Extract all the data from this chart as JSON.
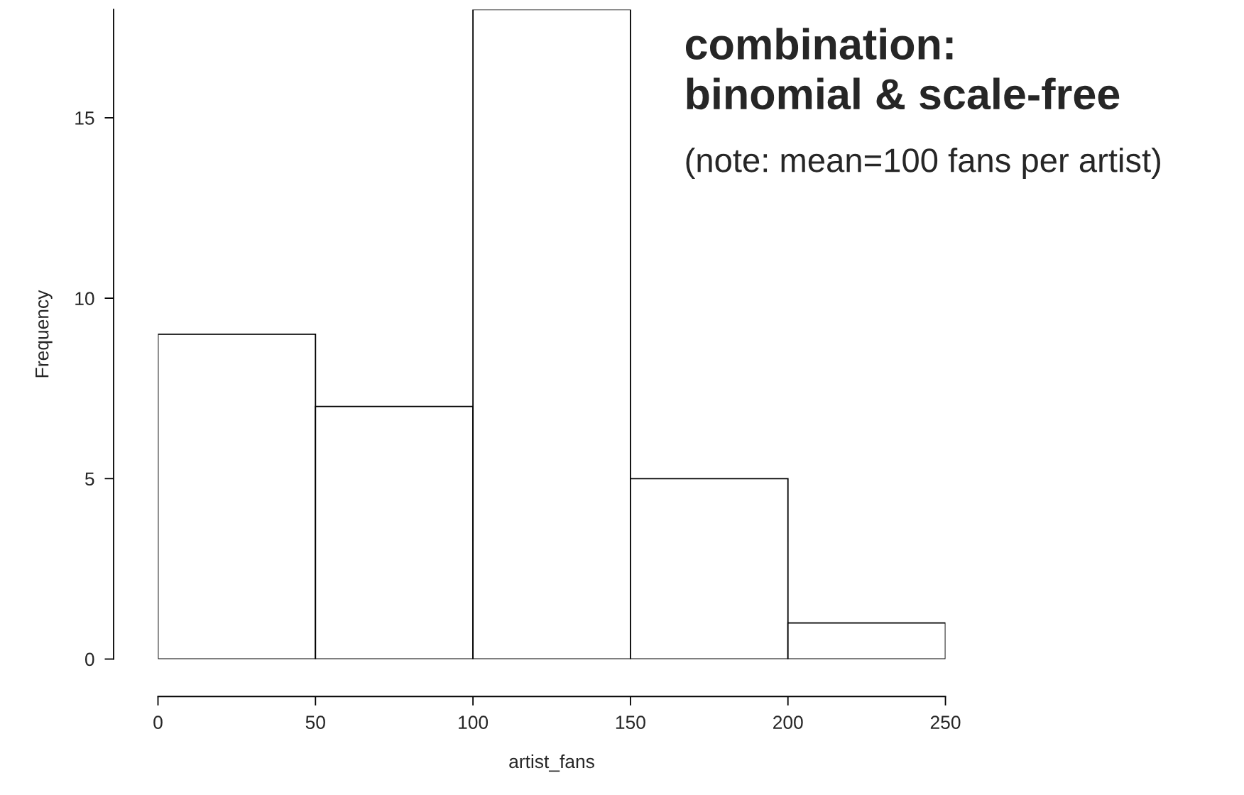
{
  "chart_data": {
    "type": "histogram",
    "title": "combination:\nbinomial & scale-free",
    "subtitle": "(note: mean=100 fans per artist)",
    "xlabel": "artist_fans",
    "ylabel": "Frequency",
    "bins": [
      0,
      50,
      100,
      150,
      200,
      250
    ],
    "values": [
      9,
      7,
      18,
      5,
      1
    ],
    "color": "#ffffff",
    "xlim": [
      0,
      250
    ],
    "xticks": [
      0,
      50,
      100,
      150,
      200,
      250
    ],
    "ylim": [
      0,
      18
    ],
    "yticks": [
      0,
      5,
      10,
      15
    ],
    "grid": false,
    "legend": false
  }
}
